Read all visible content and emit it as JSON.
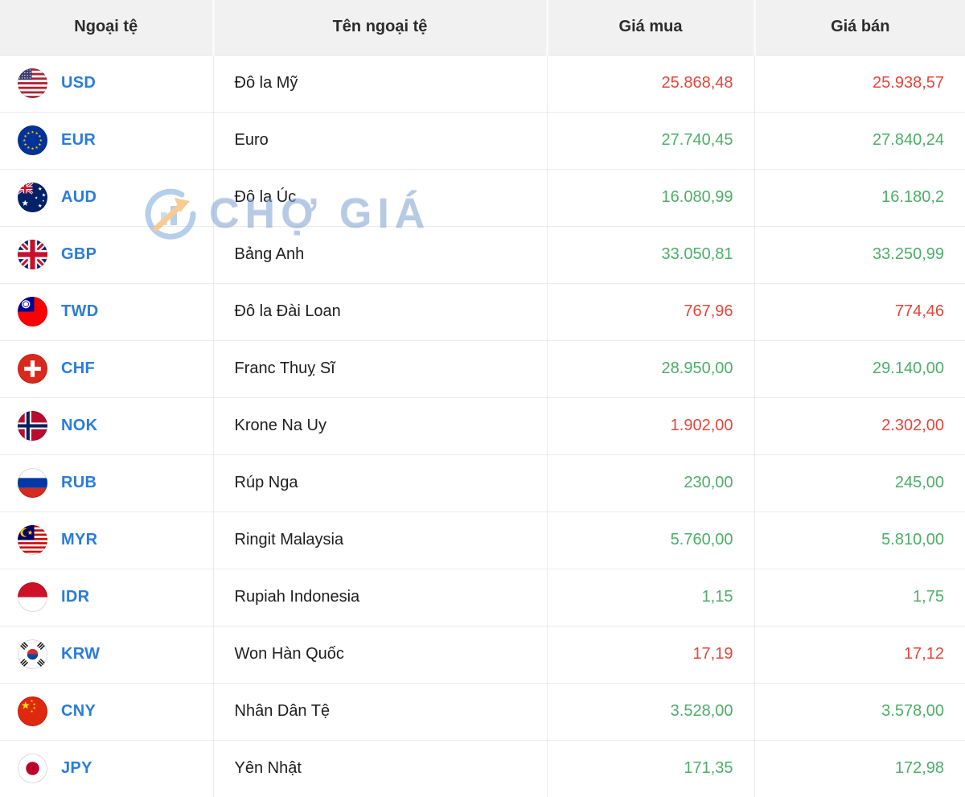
{
  "watermark": {
    "text": "CHỢ GIÁ"
  },
  "colors": {
    "red": "#e5453a",
    "green": "#4cae68",
    "code": "#2a7cdb"
  },
  "table": {
    "columns": [
      "Ngoại tệ",
      "Tên ngoại tệ",
      "Giá mua",
      "Giá bán"
    ],
    "rows": [
      {
        "flag": "us",
        "code": "USD",
        "name": "Đô la Mỹ",
        "buy": "25.868,48",
        "sell": "25.938,57",
        "trend": "red"
      },
      {
        "flag": "eu",
        "code": "EUR",
        "name": "Euro",
        "buy": "27.740,45",
        "sell": "27.840,24",
        "trend": "green"
      },
      {
        "flag": "au",
        "code": "AUD",
        "name": "Đô la Úc",
        "buy": "16.080,99",
        "sell": "16.180,2",
        "trend": "green"
      },
      {
        "flag": "gb",
        "code": "GBP",
        "name": "Bảng Anh",
        "buy": "33.050,81",
        "sell": "33.250,99",
        "trend": "green"
      },
      {
        "flag": "tw",
        "code": "TWD",
        "name": "Đô la Đài Loan",
        "buy": "767,96",
        "sell": "774,46",
        "trend": "red"
      },
      {
        "flag": "ch",
        "code": "CHF",
        "name": "Franc Thuỵ Sĩ",
        "buy": "28.950,00",
        "sell": "29.140,00",
        "trend": "green"
      },
      {
        "flag": "no",
        "code": "NOK",
        "name": "Krone Na Uy",
        "buy": "1.902,00",
        "sell": "2.302,00",
        "trend": "red"
      },
      {
        "flag": "ru",
        "code": "RUB",
        "name": "Rúp Nga",
        "buy": "230,00",
        "sell": "245,00",
        "trend": "green"
      },
      {
        "flag": "my",
        "code": "MYR",
        "name": "Ringit Malaysia",
        "buy": "5.760,00",
        "sell": "5.810,00",
        "trend": "green"
      },
      {
        "flag": "id",
        "code": "IDR",
        "name": "Rupiah Indonesia",
        "buy": "1,15",
        "sell": "1,75",
        "trend": "green"
      },
      {
        "flag": "kr",
        "code": "KRW",
        "name": "Won Hàn Quốc",
        "buy": "17,19",
        "sell": "17,12",
        "trend": "red"
      },
      {
        "flag": "cn",
        "code": "CNY",
        "name": "Nhân Dân Tệ",
        "buy": "3.528,00",
        "sell": "3.578,00",
        "trend": "green"
      },
      {
        "flag": "jp",
        "code": "JPY",
        "name": "Yên Nhật",
        "buy": "171,35",
        "sell": "172,98",
        "trend": "green"
      }
    ]
  }
}
